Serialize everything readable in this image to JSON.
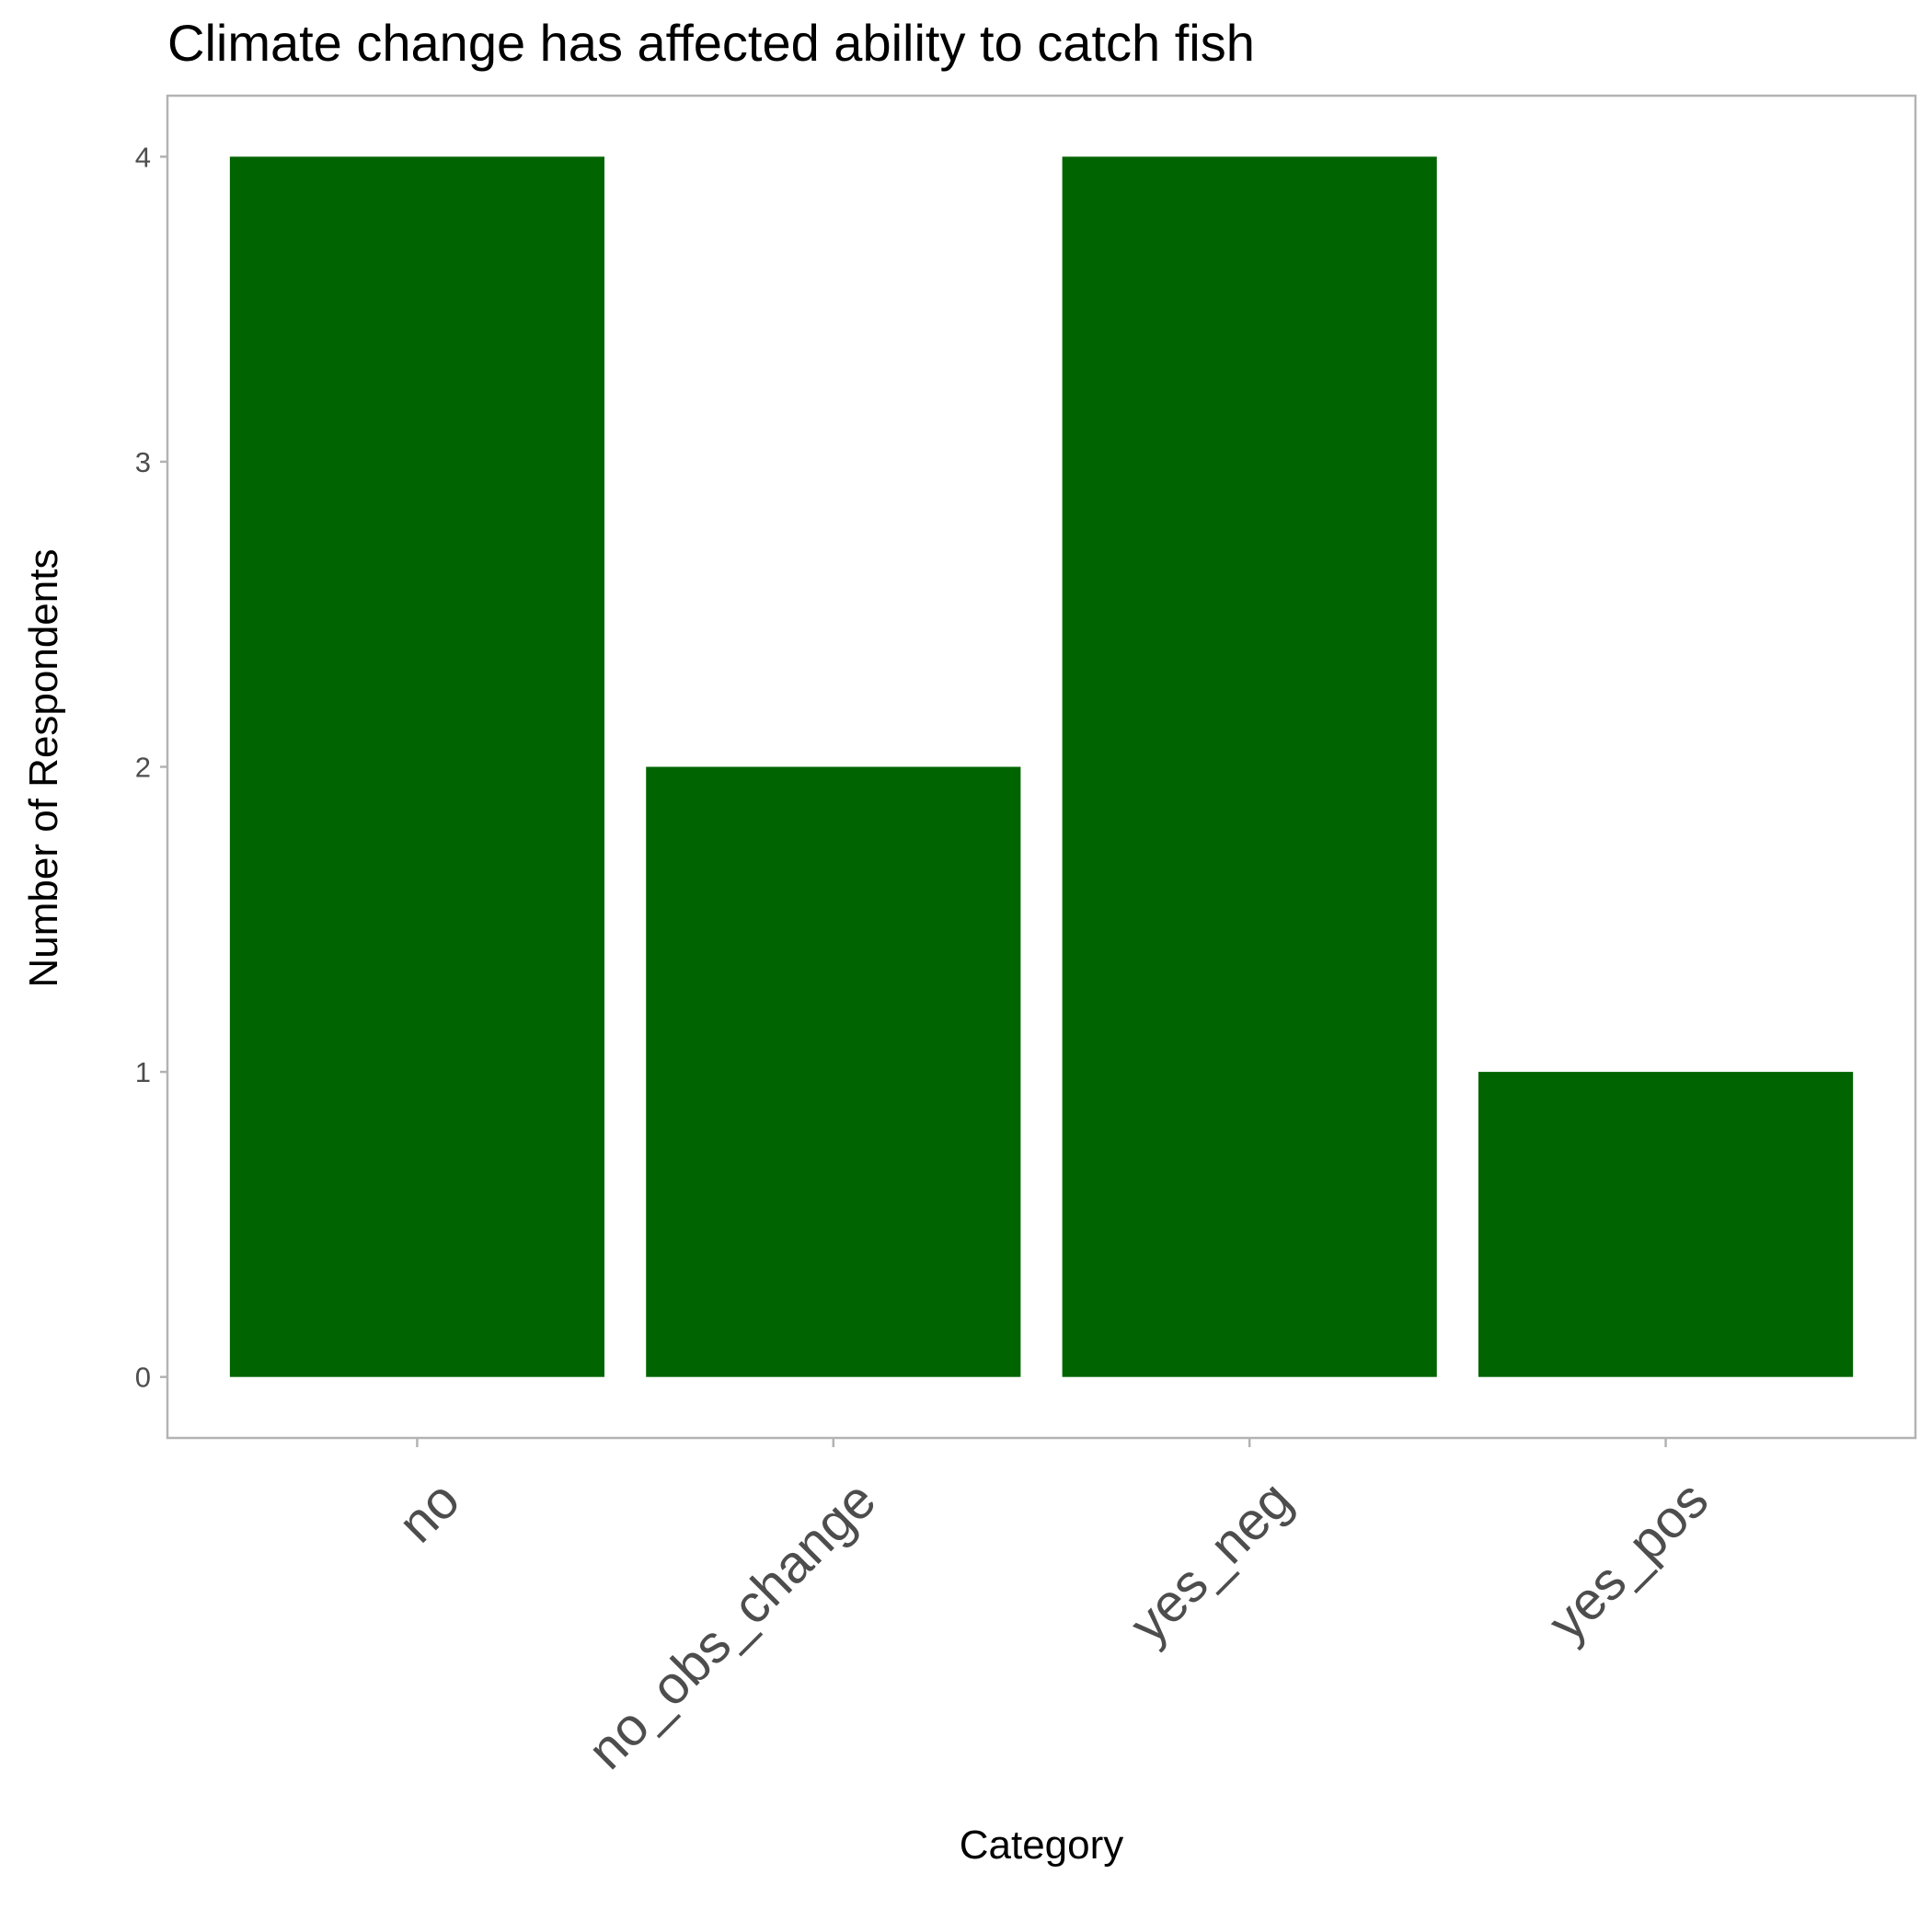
{
  "chart_data": {
    "type": "bar",
    "title": "Climate change has affected ability to catch fish",
    "xlabel": "Category",
    "ylabel": "Number of Respondents",
    "categories": [
      "no",
      "no_obs_change",
      "yes_neg",
      "yes_pos"
    ],
    "values": [
      4,
      2,
      4,
      1
    ],
    "ylim": [
      -0.2,
      4.2
    ],
    "yticks": [
      0,
      1,
      2,
      3,
      4
    ],
    "grid": false,
    "legend": "none",
    "bar_color": "#006400",
    "panel_border_color": "#b3b3b3",
    "tick_color": "#b3b3b3"
  }
}
